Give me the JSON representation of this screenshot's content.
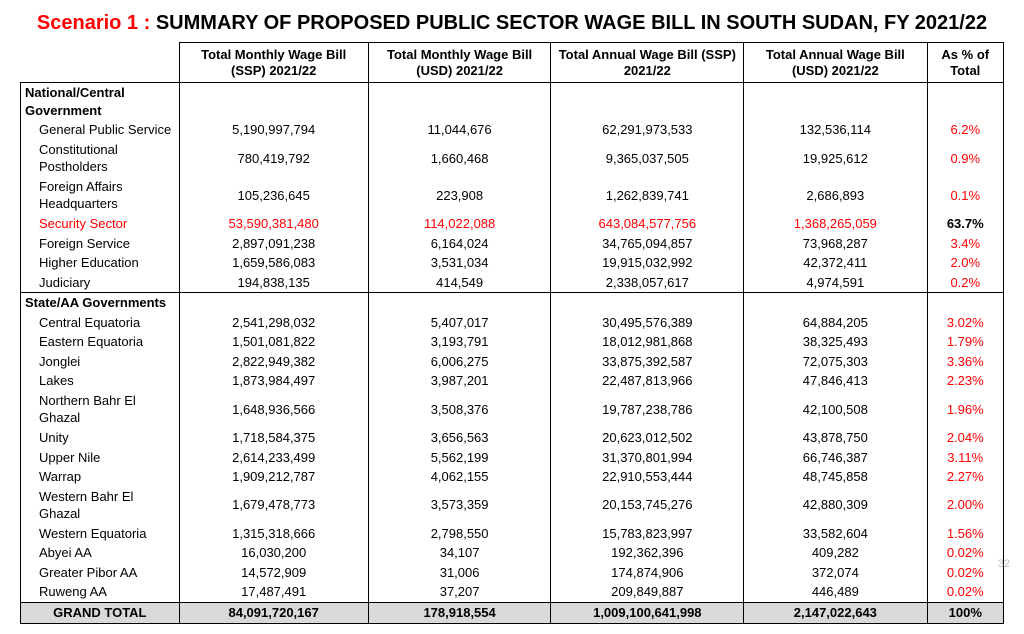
{
  "title": {
    "scenario": "Scenario 1 :",
    "rest": " SUMMARY OF PROPOSED PUBLIC SECTOR WAGE BILL IN SOUTH SUDAN, FY 2021/22"
  },
  "columns": [
    "Total Monthly Wage Bill (SSP) 2021/22",
    "Total Monthly Wage Bill (USD) 2021/22",
    "Total Annual Wage Bill (SSP) 2021/22",
    "Total Annual Wage Bill (USD) 2021/22",
    "As % of Total"
  ],
  "sections": [
    {
      "header": "National/Central Government",
      "rows": [
        {
          "name": "General Public Service",
          "c": [
            "5,190,997,794",
            "11,044,676",
            "62,291,973,533",
            "132,536,114",
            "6.2%"
          ]
        },
        {
          "name": "Constitutional Postholders",
          "c": [
            "780,419,792",
            "1,660,468",
            "9,365,037,505",
            "19,925,612",
            "0.9%"
          ]
        },
        {
          "name": "Foreign Affairs Headquarters",
          "c": [
            "105,236,645",
            "223,908",
            "1,262,839,741",
            "2,686,893",
            "0.1%"
          ]
        },
        {
          "name": "Security Sector",
          "c": [
            "53,590,381,480",
            "114,022,088",
            "643,084,577,756",
            "1,368,265,059",
            "63.7%"
          ],
          "highlight": true
        },
        {
          "name": "Foreign Service",
          "c": [
            "2,897,091,238",
            "6,164,024",
            "34,765,094,857",
            "73,968,287",
            "3.4%"
          ]
        },
        {
          "name": "Higher Education",
          "c": [
            "1,659,586,083",
            "3,531,034",
            "19,915,032,992",
            "42,372,411",
            "2.0%"
          ]
        },
        {
          "name": "Judiciary",
          "c": [
            "194,838,135",
            "414,549",
            "2,338,057,617",
            "4,974,591",
            "0.2%"
          ]
        }
      ]
    },
    {
      "header": "State/AA Governments",
      "rows": [
        {
          "name": "Central Equatoria",
          "c": [
            "2,541,298,032",
            "5,407,017",
            "30,495,576,389",
            "64,884,205",
            "3.02%"
          ]
        },
        {
          "name": "Eastern Equatoria",
          "c": [
            "1,501,081,822",
            "3,193,791",
            "18,012,981,868",
            "38,325,493",
            "1.79%"
          ]
        },
        {
          "name": "Jonglei",
          "c": [
            "2,822,949,382",
            "6,006,275",
            "33,875,392,587",
            "72,075,303",
            "3.36%"
          ]
        },
        {
          "name": "Lakes",
          "c": [
            "1,873,984,497",
            "3,987,201",
            "22,487,813,966",
            "47,846,413",
            "2.23%"
          ]
        },
        {
          "name": "Northern Bahr El Ghazal",
          "c": [
            "1,648,936,566",
            "3,508,376",
            "19,787,238,786",
            "42,100,508",
            "1.96%"
          ]
        },
        {
          "name": "Unity",
          "c": [
            "1,718,584,375",
            "3,656,563",
            "20,623,012,502",
            "43,878,750",
            "2.04%"
          ]
        },
        {
          "name": "Upper Nile",
          "c": [
            "2,614,233,499",
            "5,562,199",
            "31,370,801,994",
            "66,746,387",
            "3.11%"
          ]
        },
        {
          "name": "Warrap",
          "c": [
            "1,909,212,787",
            "4,062,155",
            "22,910,553,444",
            "48,745,858",
            "2.27%"
          ]
        },
        {
          "name": "Western Bahr El Ghazal",
          "c": [
            "1,679,478,773",
            "3,573,359",
            "20,153,745,276",
            "42,880,309",
            "2.00%"
          ]
        },
        {
          "name": "Western Equatoria",
          "c": [
            "1,315,318,666",
            "2,798,550",
            "15,783,823,997",
            "33,582,604",
            "1.56%"
          ]
        },
        {
          "name": "Abyei AA",
          "c": [
            "16,030,200",
            "34,107",
            "192,362,396",
            "409,282",
            "0.02%"
          ]
        },
        {
          "name": "Greater Pibor AA",
          "c": [
            "14,572,909",
            "31,006",
            "174,874,906",
            "372,074",
            "0.02%"
          ]
        },
        {
          "name": "Ruweng AA",
          "c": [
            "17,487,491",
            "37,207",
            "209,849,887",
            "446,489",
            "0.02%"
          ]
        }
      ]
    }
  ],
  "grand": {
    "name": "GRAND TOTAL",
    "c": [
      "84,091,720,167",
      "178,918,554",
      "1,009,100,641,998",
      "2,147,022,643",
      "100%"
    ]
  },
  "page_number": "32",
  "colors": {
    "highlight": "#ff0000",
    "grand_bg": "#d9d9d9",
    "page_no": "#bfbfbf"
  }
}
